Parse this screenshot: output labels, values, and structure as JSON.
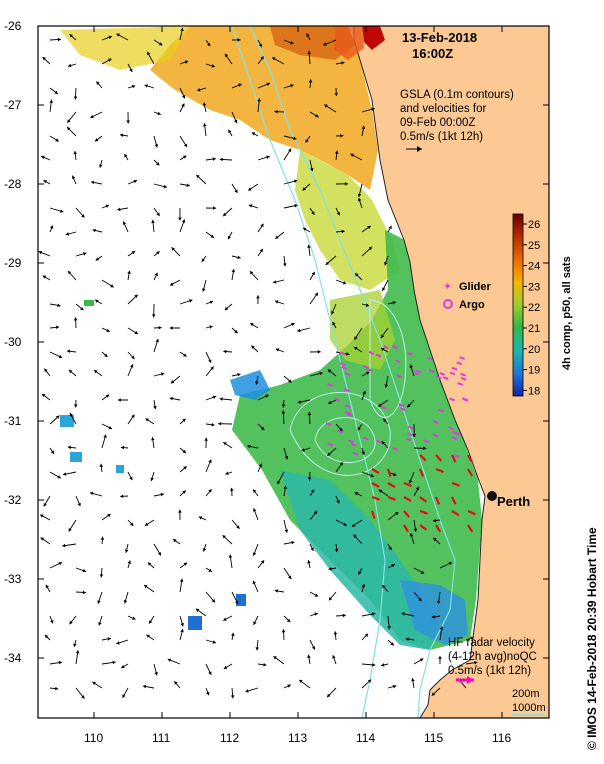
{
  "map": {
    "title_date": "13-Feb-2018",
    "title_time": "16:00Z",
    "gsla_lines": [
      "GSLA (0.1m contours)",
      "and velocities for",
      "09-Feb 00:00Z",
      "0.5m/s (1kt 12h)"
    ],
    "legend_glider": "Glider",
    "legend_argo": "Argo",
    "city_label": "Perth",
    "hf_lines": [
      "HF radar velocity",
      "(4-12h avg)noQC",
      "0.5m/s (1kt 12h)"
    ],
    "depth_200": "200m",
    "depth_1000": "1000m",
    "side_credit": "© IMOS 14-Feb-2018 20:39 Hobart Time",
    "colorbar_label": "4h comp, p50, all sats",
    "colorbar_ticks": [
      "26",
      "25",
      "24",
      "23",
      "22",
      "21",
      "20",
      "19",
      "18"
    ],
    "lat_ticks": [
      "-26",
      "-27",
      "-28",
      "-29",
      "-30",
      "-31",
      "-32",
      "-33",
      "-34"
    ],
    "lon_ticks": [
      "110",
      "111",
      "112",
      "113",
      "114",
      "115",
      "116"
    ],
    "colors": {
      "land": "#fcc894",
      "cbar_stops": [
        "#6a0000",
        "#b22b00",
        "#e96a00",
        "#f5b700",
        "#9ccc2c",
        "#2fb84e",
        "#1cb7b1",
        "#1f74d6",
        "#1420a8"
      ],
      "glider": "#e03be0",
      "hf": "#ff00c8",
      "radar": "#e01010",
      "bathy": "#7fe3e3"
    },
    "icons": [
      "glider-star-icon",
      "argo-circle-icon",
      "perth-dot-icon",
      "vector-arrow-icon"
    ]
  }
}
